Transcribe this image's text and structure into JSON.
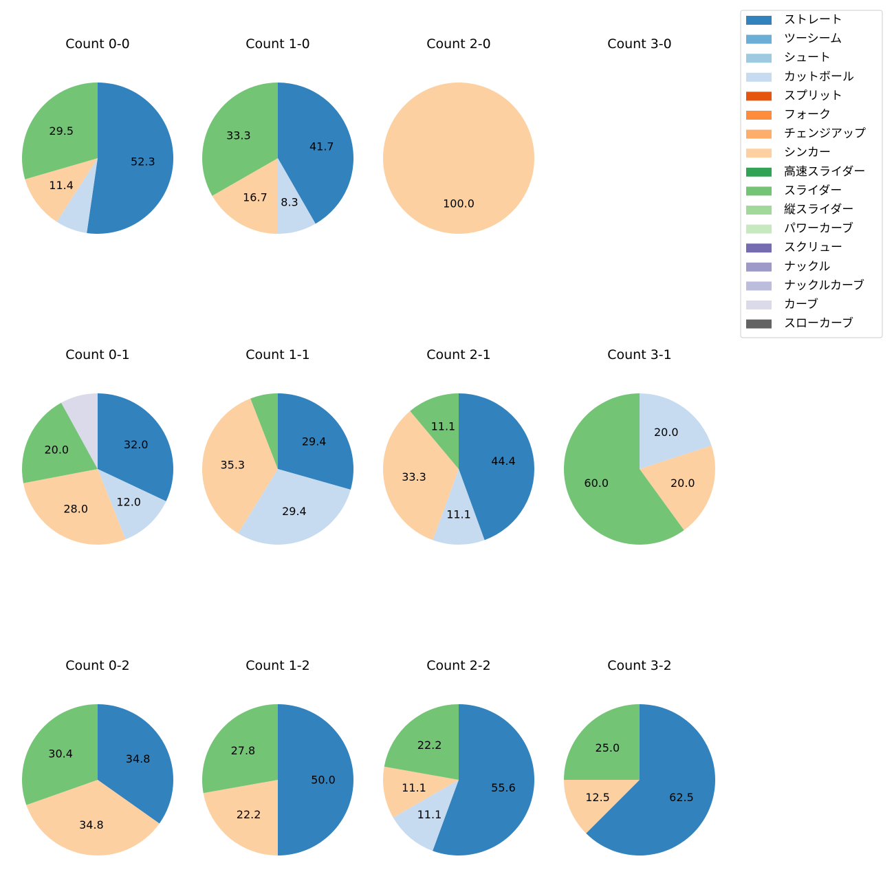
{
  "chart_data": {
    "type": "pie",
    "legend": {
      "placement": "top-right",
      "entries": [
        {
          "name": "ストレート",
          "color": "#3182bd"
        },
        {
          "name": "ツーシーム",
          "color": "#6baed6"
        },
        {
          "name": "シュート",
          "color": "#9ecae1"
        },
        {
          "name": "カットボール",
          "color": "#c6dbef"
        },
        {
          "name": "スプリット",
          "color": "#e6550d"
        },
        {
          "name": "フォーク",
          "color": "#fd8d3c"
        },
        {
          "name": "チェンジアップ",
          "color": "#fdae6b"
        },
        {
          "name": "シンカー",
          "color": "#fdd0a2"
        },
        {
          "name": "高速スライダー",
          "color": "#31a354"
        },
        {
          "name": "スライダー",
          "color": "#74c476"
        },
        {
          "name": "縦スライダー",
          "color": "#a1d99b"
        },
        {
          "name": "パワーカーブ",
          "color": "#c7e9c0"
        },
        {
          "name": "スクリュー",
          "color": "#756bb1"
        },
        {
          "name": "ナックル",
          "color": "#9e9ac8"
        },
        {
          "name": "ナックルカーブ",
          "color": "#bcbddc"
        },
        {
          "name": "カーブ",
          "color": "#dadaeb"
        },
        {
          "name": "スローカーブ",
          "color": "#636363"
        }
      ]
    },
    "charts": [
      {
        "title": "Count 0-0",
        "slices": [
          {
            "pitch": "ストレート",
            "value": 52.3,
            "label": "52.3"
          },
          {
            "pitch": "カットボール",
            "value": 6.8,
            "label": ""
          },
          {
            "pitch": "シンカー",
            "value": 11.4,
            "label": "11.4"
          },
          {
            "pitch": "スライダー",
            "value": 29.5,
            "label": "29.5"
          }
        ]
      },
      {
        "title": "Count 1-0",
        "slices": [
          {
            "pitch": "ストレート",
            "value": 41.7,
            "label": "41.7"
          },
          {
            "pitch": "カットボール",
            "value": 8.3,
            "label": "8.3"
          },
          {
            "pitch": "シンカー",
            "value": 16.7,
            "label": "16.7"
          },
          {
            "pitch": "スライダー",
            "value": 33.3,
            "label": "33.3"
          }
        ]
      },
      {
        "title": "Count 2-0",
        "slices": [
          {
            "pitch": "シンカー",
            "value": 100.0,
            "label": "100.0"
          }
        ]
      },
      {
        "title": "Count 3-0",
        "slices": []
      },
      {
        "title": "Count 0-1",
        "slices": [
          {
            "pitch": "ストレート",
            "value": 32.0,
            "label": "32.0"
          },
          {
            "pitch": "カットボール",
            "value": 12.0,
            "label": "12.0"
          },
          {
            "pitch": "シンカー",
            "value": 28.0,
            "label": "28.0"
          },
          {
            "pitch": "スライダー",
            "value": 20.0,
            "label": "20.0"
          },
          {
            "pitch": "カーブ",
            "value": 8.0,
            "label": ""
          }
        ]
      },
      {
        "title": "Count 1-1",
        "slices": [
          {
            "pitch": "ストレート",
            "value": 29.4,
            "label": "29.4"
          },
          {
            "pitch": "カットボール",
            "value": 29.4,
            "label": "29.4"
          },
          {
            "pitch": "シンカー",
            "value": 35.3,
            "label": "35.3"
          },
          {
            "pitch": "スライダー",
            "value": 5.9,
            "label": ""
          }
        ]
      },
      {
        "title": "Count 2-1",
        "slices": [
          {
            "pitch": "ストレート",
            "value": 44.4,
            "label": "44.4"
          },
          {
            "pitch": "カットボール",
            "value": 11.1,
            "label": "11.1"
          },
          {
            "pitch": "シンカー",
            "value": 33.3,
            "label": "33.3"
          },
          {
            "pitch": "スライダー",
            "value": 11.1,
            "label": "11.1"
          }
        ]
      },
      {
        "title": "Count 3-1",
        "slices": [
          {
            "pitch": "カットボール",
            "value": 20.0,
            "label": "20.0"
          },
          {
            "pitch": "シンカー",
            "value": 20.0,
            "label": "20.0"
          },
          {
            "pitch": "スライダー",
            "value": 60.0,
            "label": "60.0"
          }
        ]
      },
      {
        "title": "Count 0-2",
        "slices": [
          {
            "pitch": "ストレート",
            "value": 34.8,
            "label": "34.8"
          },
          {
            "pitch": "シンカー",
            "value": 34.8,
            "label": "34.8"
          },
          {
            "pitch": "スライダー",
            "value": 30.4,
            "label": "30.4"
          }
        ]
      },
      {
        "title": "Count 1-2",
        "slices": [
          {
            "pitch": "ストレート",
            "value": 50.0,
            "label": "50.0"
          },
          {
            "pitch": "シンカー",
            "value": 22.2,
            "label": "22.2"
          },
          {
            "pitch": "スライダー",
            "value": 27.8,
            "label": "27.8"
          }
        ]
      },
      {
        "title": "Count 2-2",
        "slices": [
          {
            "pitch": "ストレート",
            "value": 55.6,
            "label": "55.6"
          },
          {
            "pitch": "カットボール",
            "value": 11.1,
            "label": "11.1"
          },
          {
            "pitch": "シンカー",
            "value": 11.1,
            "label": "11.1"
          },
          {
            "pitch": "スライダー",
            "value": 22.2,
            "label": "22.2"
          }
        ]
      },
      {
        "title": "Count 3-2",
        "slices": [
          {
            "pitch": "ストレート",
            "value": 62.5,
            "label": "62.5"
          },
          {
            "pitch": "シンカー",
            "value": 12.5,
            "label": "12.5"
          },
          {
            "pitch": "スライダー",
            "value": 25.0,
            "label": "25.0"
          }
        ]
      }
    ]
  }
}
